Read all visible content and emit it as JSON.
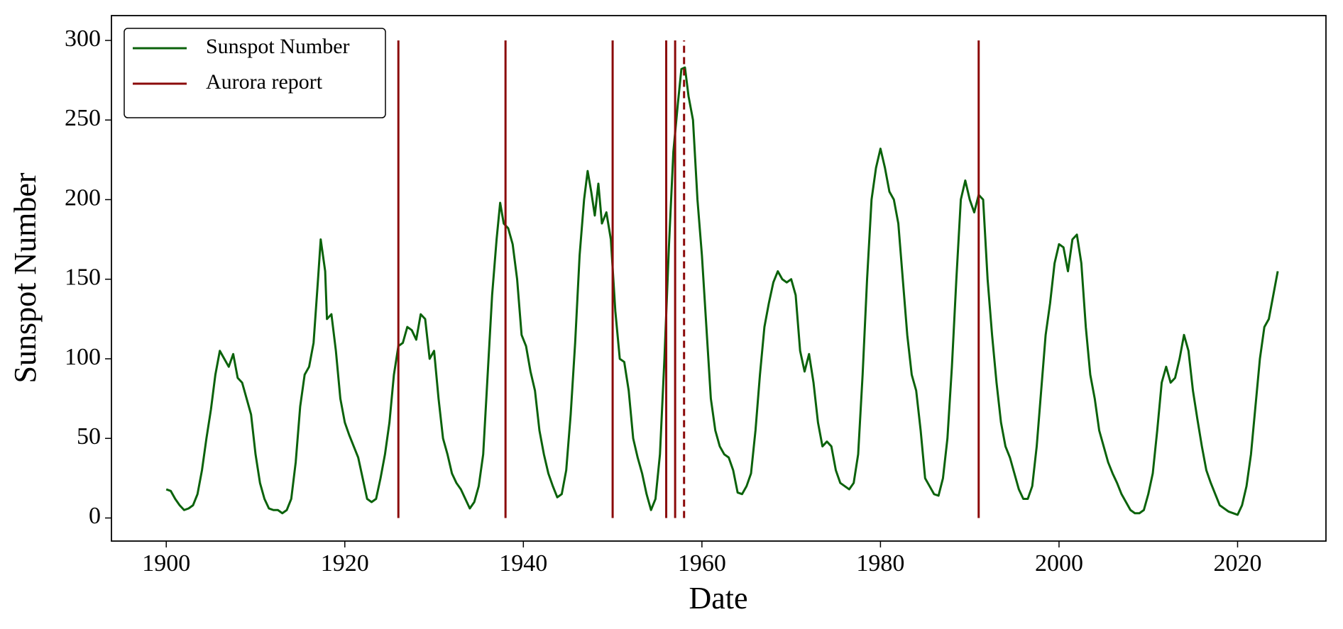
{
  "chart_data": {
    "type": "line",
    "xlabel": "Date",
    "ylabel": "Sunspot Number",
    "xlim": [
      1893.86,
      2029.9
    ],
    "ylim": [
      -14.5,
      315.6
    ],
    "xticks": [
      1900,
      1920,
      1940,
      1960,
      1980,
      2000,
      2020
    ],
    "yticks": [
      0,
      50,
      100,
      150,
      200,
      250,
      300
    ],
    "legend": "upper left",
    "series": [
      {
        "name": "Sunspot Number",
        "color": "#0b620b",
        "x": [
          1900,
          1900.5,
          1901,
          1901.5,
          1902,
          1902.5,
          1903,
          1903.5,
          1904,
          1904.5,
          1905,
          1905.5,
          1906,
          1906.5,
          1907,
          1907.5,
          1908,
          1908.5,
          1909,
          1909.5,
          1910,
          1910.5,
          1911,
          1911.5,
          1912,
          1912.5,
          1913,
          1913.5,
          1914,
          1914.5,
          1915,
          1915.5,
          1916,
          1916.5,
          1917,
          1917.3,
          1917.8,
          1918,
          1918.5,
          1919,
          1919.5,
          1920,
          1920.5,
          1921,
          1921.5,
          1922,
          1922.5,
          1923,
          1923.5,
          1924,
          1924.5,
          1925,
          1925.5,
          1926,
          1926.5,
          1927,
          1927.5,
          1928,
          1928.5,
          1929,
          1929.5,
          1930,
          1930.5,
          1931,
          1931.5,
          1932,
          1932.5,
          1933,
          1933.5,
          1934,
          1934.5,
          1935,
          1935.5,
          1936,
          1936.5,
          1937,
          1937.4,
          1937.8,
          1938.3,
          1938.8,
          1939.3,
          1939.8,
          1940.3,
          1940.8,
          1941.3,
          1941.8,
          1942.3,
          1942.8,
          1943.3,
          1943.8,
          1944.3,
          1944.8,
          1945.3,
          1945.8,
          1946.3,
          1946.8,
          1947.2,
          1947.6,
          1948,
          1948.4,
          1948.8,
          1949.3,
          1949.8,
          1950.3,
          1950.8,
          1951.3,
          1951.8,
          1952.3,
          1952.8,
          1953.3,
          1953.8,
          1954.3,
          1954.8,
          1955.3,
          1955.8,
          1956.3,
          1956.8,
          1957.3,
          1957.7,
          1958.1,
          1958.5,
          1959,
          1959.5,
          1960,
          1960.5,
          1961,
          1961.5,
          1962,
          1962.5,
          1963,
          1963.5,
          1964,
          1964.5,
          1965,
          1965.5,
          1966,
          1966.5,
          1967,
          1967.5,
          1968,
          1968.5,
          1969,
          1969.5,
          1970,
          1970.5,
          1971,
          1971.5,
          1972,
          1972.5,
          1973,
          1973.5,
          1974,
          1974.5,
          1975,
          1975.5,
          1976,
          1976.5,
          1977,
          1977.5,
          1978,
          1978.5,
          1979,
          1979.5,
          1980,
          1980.5,
          1981,
          1981.5,
          1982,
          1982.5,
          1983,
          1983.5,
          1984,
          1984.5,
          1985,
          1985.5,
          1986,
          1986.5,
          1987,
          1987.5,
          1988,
          1988.5,
          1989,
          1989.5,
          1990,
          1990.5,
          1991,
          1991.5,
          1992,
          1992.5,
          1993,
          1993.5,
          1994,
          1994.5,
          1995,
          1995.5,
          1996,
          1996.5,
          1997,
          1997.5,
          1998,
          1998.5,
          1999,
          1999.5,
          2000,
          2000.5,
          2001,
          2001.5,
          2002,
          2002.5,
          2003,
          2003.5,
          2004,
          2004.5,
          2005,
          2005.5,
          2006,
          2006.5,
          2007,
          2007.5,
          2008,
          2008.5,
          2009,
          2009.5,
          2010,
          2010.5,
          2011,
          2011.5,
          2012,
          2012.5,
          2013,
          2013.5,
          2014,
          2014.5,
          2015,
          2015.5,
          2016,
          2016.5,
          2017,
          2017.5,
          2018,
          2018.5,
          2019,
          2019.5,
          2020,
          2020.5,
          2021,
          2021.5,
          2022,
          2022.5,
          2023,
          2023.5,
          2024,
          2024.5
        ],
        "values": [
          18,
          17,
          12,
          8,
          5,
          6,
          8,
          15,
          30,
          50,
          68,
          90,
          105,
          100,
          95,
          103,
          88,
          85,
          75,
          65,
          40,
          22,
          12,
          6,
          5,
          5,
          3,
          5,
          12,
          35,
          70,
          90,
          95,
          110,
          150,
          175,
          155,
          125,
          128,
          105,
          75,
          60,
          52,
          45,
          38,
          25,
          12,
          10,
          12,
          25,
          40,
          60,
          90,
          108,
          110,
          120,
          118,
          112,
          128,
          125,
          100,
          105,
          75,
          50,
          40,
          28,
          22,
          18,
          12,
          6,
          10,
          20,
          40,
          90,
          140,
          175,
          198,
          185,
          182,
          172,
          150,
          115,
          108,
          92,
          80,
          55,
          40,
          28,
          20,
          13,
          15,
          30,
          65,
          110,
          165,
          200,
          218,
          205,
          190,
          210,
          185,
          192,
          175,
          130,
          100,
          98,
          80,
          50,
          38,
          28,
          15,
          5,
          12,
          40,
          100,
          170,
          230,
          260,
          282,
          283,
          265,
          250,
          200,
          165,
          120,
          75,
          55,
          45,
          40,
          38,
          30,
          16,
          15,
          20,
          28,
          55,
          90,
          120,
          135,
          148,
          155,
          150,
          148,
          150,
          140,
          105,
          92,
          103,
          85,
          60,
          45,
          48,
          45,
          30,
          22,
          20,
          18,
          22,
          40,
          90,
          150,
          200,
          220,
          232,
          220,
          205,
          200,
          185,
          150,
          115,
          90,
          80,
          55,
          25,
          20,
          15,
          14,
          25,
          50,
          95,
          150,
          200,
          212,
          200,
          192,
          203,
          200,
          150,
          115,
          85,
          60,
          45,
          38,
          28,
          18,
          12,
          12,
          20,
          45,
          80,
          115,
          135,
          160,
          172,
          170,
          155,
          175,
          178,
          160,
          120,
          90,
          75,
          55,
          45,
          35,
          28,
          22,
          15,
          10,
          5,
          3,
          3,
          5,
          15,
          28,
          55,
          85,
          95,
          85,
          88,
          100,
          115,
          105,
          80,
          62,
          45,
          30,
          22,
          15,
          8,
          6,
          4,
          3,
          2,
          8,
          20,
          40,
          70,
          100,
          120,
          125,
          140,
          155
        ]
      }
    ],
    "vlines": {
      "name": "Aurora report",
      "color": "#8b0a0a",
      "x": [
        1926,
        1938,
        1950,
        1956,
        1957,
        1958,
        1991
      ],
      "styles": [
        "solid",
        "solid",
        "solid",
        "solid",
        "solid",
        "dashed",
        "solid"
      ],
      "span": [
        0,
        300
      ]
    }
  }
}
